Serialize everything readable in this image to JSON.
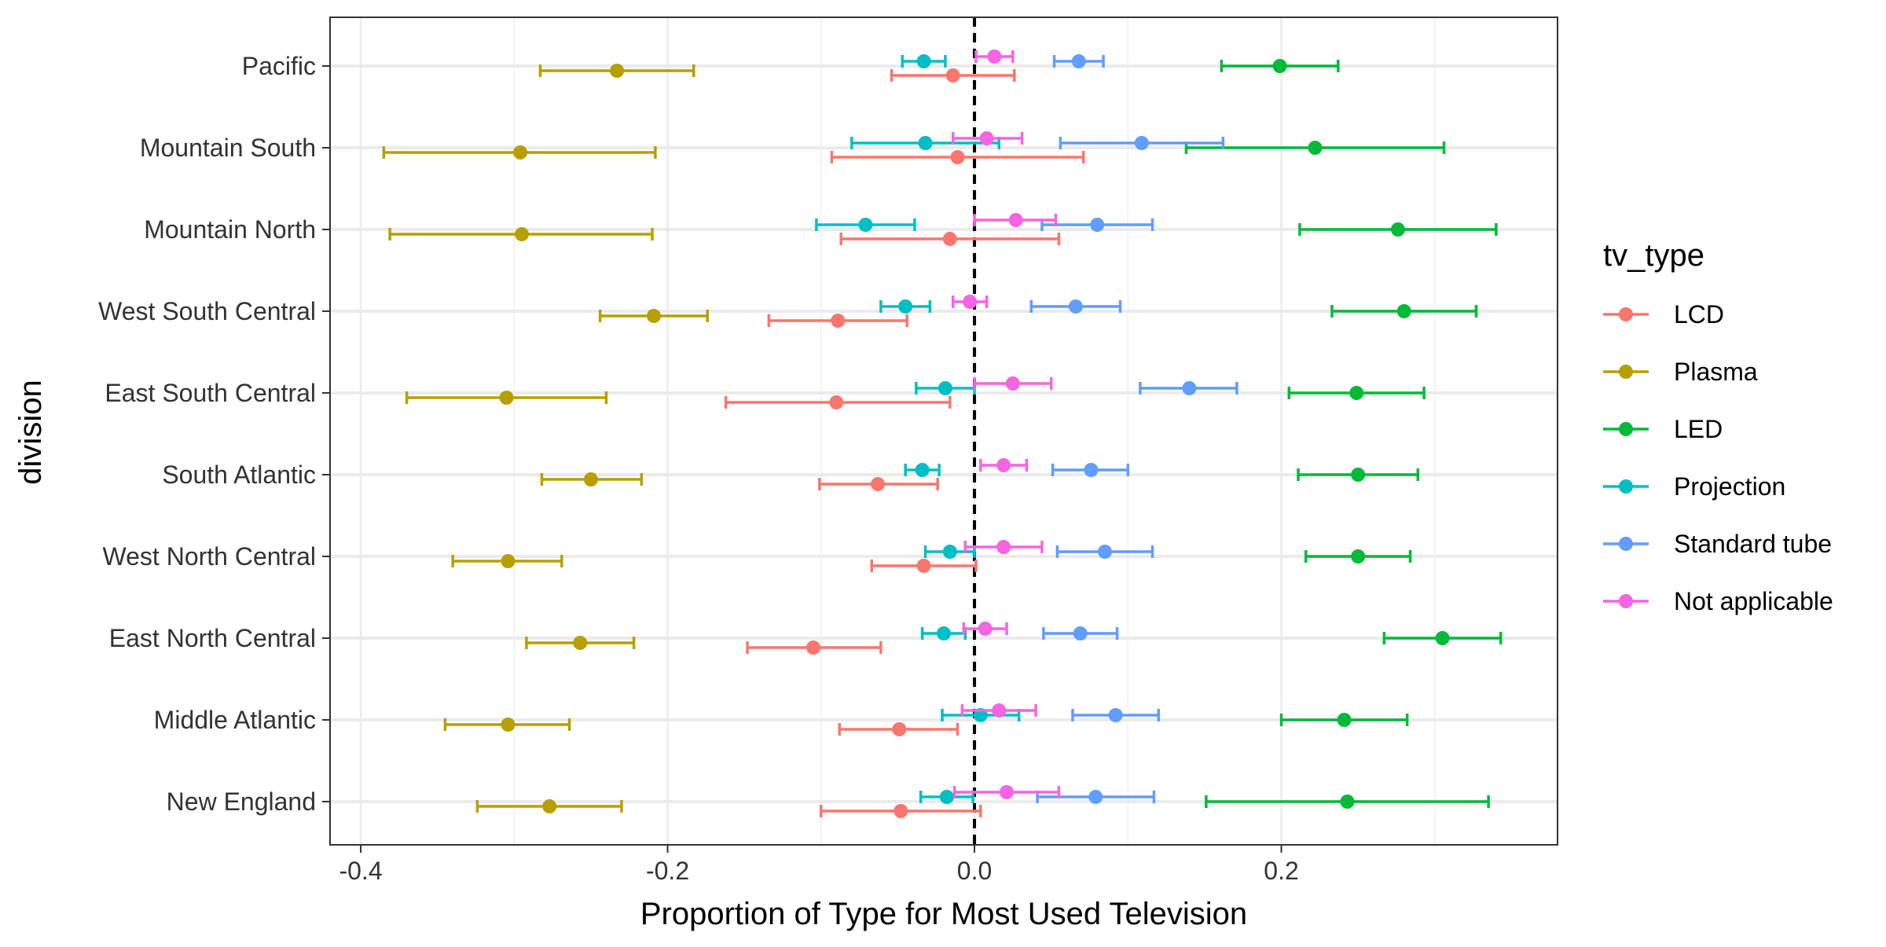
{
  "chart_data": {
    "type": "scatter",
    "xlabel": "Proportion of Type for Most Used Television",
    "ylabel": "division",
    "xlim": [
      -0.42,
      0.38
    ],
    "xticks": [
      -0.4,
      -0.2,
      0.0,
      0.2
    ],
    "xtick_labels": [
      "-0.4",
      "-0.2",
      "0.0",
      "0.2"
    ],
    "grid": true,
    "reference_line_x": 0,
    "categories": [
      "Pacific",
      "Mountain South",
      "Mountain North",
      "West South Central",
      "East South Central",
      "South Atlantic",
      "West North Central",
      "East North Central",
      "Middle Atlantic",
      "New England"
    ],
    "legend": {
      "title": "tv_type",
      "position": "right"
    },
    "series": [
      {
        "name": "LCD",
        "color": "#F8766D",
        "values": [
          -0.014,
          -0.011,
          -0.016,
          -0.089,
          -0.09,
          -0.063,
          -0.033,
          -0.105,
          -0.049,
          -0.048
        ],
        "lower": [
          -0.054,
          -0.093,
          -0.087,
          -0.134,
          -0.162,
          -0.101,
          -0.067,
          -0.148,
          -0.088,
          -0.1
        ],
        "upper": [
          0.026,
          0.071,
          0.055,
          -0.044,
          -0.016,
          -0.024,
          0.001,
          -0.061,
          -0.011,
          0.004
        ]
      },
      {
        "name": "Plasma",
        "color": "#B79F00",
        "values": [
          -0.233,
          -0.296,
          -0.295,
          -0.209,
          -0.305,
          -0.25,
          -0.304,
          -0.257,
          -0.304,
          -0.277
        ],
        "lower": [
          -0.283,
          -0.385,
          -0.381,
          -0.244,
          -0.37,
          -0.282,
          -0.34,
          -0.292,
          -0.345,
          -0.324
        ],
        "upper": [
          -0.183,
          -0.208,
          -0.21,
          -0.174,
          -0.24,
          -0.217,
          -0.269,
          -0.222,
          -0.264,
          -0.23
        ]
      },
      {
        "name": "LED",
        "color": "#00BA38",
        "values": [
          0.199,
          0.222,
          0.276,
          0.28,
          0.249,
          0.25,
          0.25,
          0.305,
          0.241,
          0.243
        ],
        "lower": [
          0.161,
          0.138,
          0.212,
          0.233,
          0.205,
          0.211,
          0.216,
          0.267,
          0.2,
          0.151
        ],
        "upper": [
          0.237,
          0.306,
          0.34,
          0.327,
          0.293,
          0.289,
          0.284,
          0.343,
          0.282,
          0.335
        ]
      },
      {
        "name": "Projection",
        "color": "#00BFC4",
        "values": [
          -0.033,
          -0.032,
          -0.071,
          -0.045,
          -0.019,
          -0.034,
          -0.016,
          -0.02,
          0.004,
          -0.018
        ],
        "lower": [
          -0.047,
          -0.08,
          -0.103,
          -0.061,
          -0.038,
          -0.045,
          -0.032,
          -0.034,
          -0.021,
          -0.035
        ],
        "upper": [
          -0.019,
          0.016,
          -0.039,
          -0.029,
          0.0,
          -0.023,
          0.0,
          -0.006,
          0.029,
          -0.001
        ]
      },
      {
        "name": "Standard tube",
        "color": "#619CFF",
        "values": [
          0.068,
          0.109,
          0.08,
          0.066,
          0.14,
          0.076,
          0.085,
          0.069,
          0.092,
          0.079
        ],
        "lower": [
          0.052,
          0.056,
          0.044,
          0.037,
          0.108,
          0.051,
          0.054,
          0.045,
          0.064,
          0.041
        ],
        "upper": [
          0.084,
          0.162,
          0.116,
          0.095,
          0.171,
          0.1,
          0.116,
          0.093,
          0.12,
          0.117
        ]
      },
      {
        "name": "Not applicable",
        "color": "#F564E3",
        "values": [
          0.013,
          0.008,
          0.027,
          -0.003,
          0.025,
          0.019,
          0.019,
          0.007,
          0.016,
          0.021
        ],
        "lower": [
          0.001,
          -0.014,
          0.0,
          -0.014,
          0.0,
          0.004,
          -0.006,
          -0.007,
          -0.008,
          -0.013
        ],
        "upper": [
          0.025,
          0.031,
          0.053,
          0.008,
          0.05,
          0.034,
          0.044,
          0.021,
          0.04,
          0.055
        ]
      }
    ]
  }
}
